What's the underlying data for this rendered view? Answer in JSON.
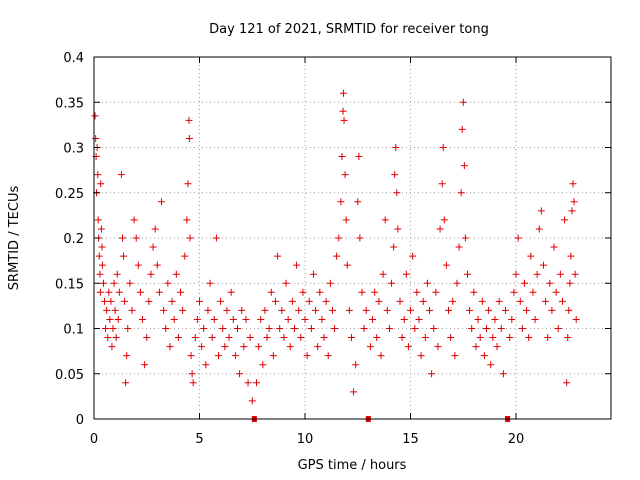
{
  "chart_data": {
    "type": "scatter",
    "title": "Day 121 of 2021, SRMTID for receiver tong",
    "xlabel": "GPS time / hours",
    "ylabel": "SRMTID / TECUs",
    "xlim": [
      0,
      24.5
    ],
    "ylim": [
      0,
      0.4
    ],
    "xticks": [
      0,
      5,
      10,
      15,
      20
    ],
    "xtick_labels": [
      "0",
      "5",
      "10",
      "15",
      "20"
    ],
    "yticks": [
      0,
      0.05,
      0.1,
      0.15,
      0.2,
      0.25,
      0.3,
      0.35,
      0.4
    ],
    "ytick_labels": [
      "0",
      "0.05",
      "0.1",
      "0.15",
      "0.2",
      "0.25",
      "0.3",
      "0.35",
      "0.4"
    ],
    "grid": true,
    "marker": "plus",
    "color": "#e00000",
    "data_gap_markers_x": [
      7.6,
      13.0,
      19.6
    ],
    "series": [
      {
        "name": "SRMTID",
        "points": [
          [
            0.05,
            0.335
          ],
          [
            0.08,
            0.31
          ],
          [
            0.1,
            0.29
          ],
          [
            0.12,
            0.25
          ],
          [
            0.15,
            0.3
          ],
          [
            0.18,
            0.27
          ],
          [
            0.2,
            0.22
          ],
          [
            0.22,
            0.2
          ],
          [
            0.25,
            0.18
          ],
          [
            0.28,
            0.16
          ],
          [
            0.3,
            0.14
          ],
          [
            0.32,
            0.26
          ],
          [
            0.35,
            0.21
          ],
          [
            0.38,
            0.19
          ],
          [
            0.4,
            0.17
          ],
          [
            0.45,
            0.15
          ],
          [
            0.5,
            0.13
          ],
          [
            0.55,
            0.1
          ],
          [
            0.6,
            0.12
          ],
          [
            0.65,
            0.09
          ],
          [
            0.7,
            0.14
          ],
          [
            0.75,
            0.11
          ],
          [
            0.8,
            0.13
          ],
          [
            0.85,
            0.08
          ],
          [
            0.9,
            0.1
          ],
          [
            0.95,
            0.15
          ],
          [
            1.0,
            0.12
          ],
          [
            1.05,
            0.09
          ],
          [
            1.1,
            0.16
          ],
          [
            1.15,
            0.11
          ],
          [
            1.2,
            0.14
          ],
          [
            1.3,
            0.27
          ],
          [
            1.35,
            0.2
          ],
          [
            1.4,
            0.18
          ],
          [
            1.45,
            0.13
          ],
          [
            1.5,
            0.04
          ],
          [
            1.55,
            0.07
          ],
          [
            1.6,
            0.1
          ],
          [
            1.7,
            0.15
          ],
          [
            1.8,
            0.12
          ],
          [
            1.9,
            0.22
          ],
          [
            2.0,
            0.2
          ],
          [
            2.1,
            0.17
          ],
          [
            2.2,
            0.14
          ],
          [
            2.3,
            0.11
          ],
          [
            2.4,
            0.06
          ],
          [
            2.5,
            0.09
          ],
          [
            2.6,
            0.13
          ],
          [
            2.7,
            0.16
          ],
          [
            2.8,
            0.19
          ],
          [
            2.9,
            0.21
          ],
          [
            3.0,
            0.17
          ],
          [
            3.1,
            0.14
          ],
          [
            3.2,
            0.24
          ],
          [
            3.3,
            0.12
          ],
          [
            3.4,
            0.1
          ],
          [
            3.5,
            0.15
          ],
          [
            3.6,
            0.08
          ],
          [
            3.7,
            0.13
          ],
          [
            3.8,
            0.11
          ],
          [
            3.9,
            0.16
          ],
          [
            4.0,
            0.09
          ],
          [
            4.1,
            0.14
          ],
          [
            4.2,
            0.12
          ],
          [
            4.3,
            0.18
          ],
          [
            4.4,
            0.22
          ],
          [
            4.45,
            0.26
          ],
          [
            4.5,
            0.33
          ],
          [
            4.52,
            0.31
          ],
          [
            4.55,
            0.2
          ],
          [
            4.6,
            0.07
          ],
          [
            4.65,
            0.05
          ],
          [
            4.7,
            0.04
          ],
          [
            4.8,
            0.09
          ],
          [
            4.9,
            0.11
          ],
          [
            5.0,
            0.13
          ],
          [
            5.1,
            0.08
          ],
          [
            5.2,
            0.1
          ],
          [
            5.3,
            0.06
          ],
          [
            5.4,
            0.12
          ],
          [
            5.5,
            0.15
          ],
          [
            5.6,
            0.09
          ],
          [
            5.7,
            0.11
          ],
          [
            5.8,
            0.2
          ],
          [
            5.9,
            0.07
          ],
          [
            6.0,
            0.13
          ],
          [
            6.1,
            0.1
          ],
          [
            6.2,
            0.08
          ],
          [
            6.3,
            0.12
          ],
          [
            6.4,
            0.09
          ],
          [
            6.5,
            0.14
          ],
          [
            6.6,
            0.11
          ],
          [
            6.7,
            0.07
          ],
          [
            6.8,
            0.1
          ],
          [
            6.9,
            0.05
          ],
          [
            7.0,
            0.12
          ],
          [
            7.1,
            0.08
          ],
          [
            7.2,
            0.11
          ],
          [
            7.3,
            0.04
          ],
          [
            7.4,
            0.09
          ],
          [
            7.5,
            0.02
          ],
          [
            7.7,
            0.04
          ],
          [
            7.8,
            0.08
          ],
          [
            7.9,
            0.11
          ],
          [
            8.0,
            0.06
          ],
          [
            8.1,
            0.12
          ],
          [
            8.2,
            0.09
          ],
          [
            8.3,
            0.1
          ],
          [
            8.4,
            0.14
          ],
          [
            8.5,
            0.07
          ],
          [
            8.6,
            0.13
          ],
          [
            8.7,
            0.18
          ],
          [
            8.8,
            0.1
          ],
          [
            8.9,
            0.12
          ],
          [
            9.0,
            0.09
          ],
          [
            9.1,
            0.15
          ],
          [
            9.2,
            0.11
          ],
          [
            9.3,
            0.08
          ],
          [
            9.4,
            0.13
          ],
          [
            9.5,
            0.1
          ],
          [
            9.6,
            0.17
          ],
          [
            9.7,
            0.12
          ],
          [
            9.8,
            0.09
          ],
          [
            9.9,
            0.14
          ],
          [
            10.0,
            0.11
          ],
          [
            10.1,
            0.07
          ],
          [
            10.2,
            0.13
          ],
          [
            10.3,
            0.1
          ],
          [
            10.4,
            0.16
          ],
          [
            10.5,
            0.12
          ],
          [
            10.6,
            0.08
          ],
          [
            10.7,
            0.14
          ],
          [
            10.8,
            0.11
          ],
          [
            10.9,
            0.09
          ],
          [
            11.0,
            0.13
          ],
          [
            11.1,
            0.07
          ],
          [
            11.2,
            0.15
          ],
          [
            11.3,
            0.12
          ],
          [
            11.4,
            0.1
          ],
          [
            11.5,
            0.18
          ],
          [
            11.6,
            0.2
          ],
          [
            11.7,
            0.24
          ],
          [
            11.75,
            0.29
          ],
          [
            11.8,
            0.34
          ],
          [
            11.82,
            0.36
          ],
          [
            11.85,
            0.33
          ],
          [
            11.9,
            0.27
          ],
          [
            11.95,
            0.22
          ],
          [
            12.0,
            0.17
          ],
          [
            12.1,
            0.12
          ],
          [
            12.2,
            0.09
          ],
          [
            12.3,
            0.03
          ],
          [
            12.4,
            0.06
          ],
          [
            12.5,
            0.24
          ],
          [
            12.55,
            0.29
          ],
          [
            12.6,
            0.2
          ],
          [
            12.7,
            0.14
          ],
          [
            12.8,
            0.1
          ],
          [
            12.9,
            0.12
          ],
          [
            13.1,
            0.08
          ],
          [
            13.2,
            0.11
          ],
          [
            13.3,
            0.14
          ],
          [
            13.4,
            0.09
          ],
          [
            13.5,
            0.13
          ],
          [
            13.6,
            0.07
          ],
          [
            13.7,
            0.16
          ],
          [
            13.8,
            0.22
          ],
          [
            13.9,
            0.12
          ],
          [
            14.0,
            0.1
          ],
          [
            14.1,
            0.15
          ],
          [
            14.2,
            0.19
          ],
          [
            14.25,
            0.27
          ],
          [
            14.3,
            0.3
          ],
          [
            14.35,
            0.25
          ],
          [
            14.4,
            0.21
          ],
          [
            14.5,
            0.13
          ],
          [
            14.6,
            0.09
          ],
          [
            14.7,
            0.11
          ],
          [
            14.8,
            0.16
          ],
          [
            14.9,
            0.08
          ],
          [
            15.0,
            0.12
          ],
          [
            15.1,
            0.18
          ],
          [
            15.2,
            0.1
          ],
          [
            15.3,
            0.14
          ],
          [
            15.4,
            0.11
          ],
          [
            15.5,
            0.07
          ],
          [
            15.6,
            0.13
          ],
          [
            15.7,
            0.09
          ],
          [
            15.8,
            0.15
          ],
          [
            15.9,
            0.12
          ],
          [
            16.0,
            0.05
          ],
          [
            16.1,
            0.1
          ],
          [
            16.2,
            0.14
          ],
          [
            16.3,
            0.08
          ],
          [
            16.4,
            0.21
          ],
          [
            16.5,
            0.26
          ],
          [
            16.55,
            0.3
          ],
          [
            16.6,
            0.22
          ],
          [
            16.7,
            0.17
          ],
          [
            16.8,
            0.12
          ],
          [
            16.9,
            0.09
          ],
          [
            17.0,
            0.13
          ],
          [
            17.1,
            0.07
          ],
          [
            17.2,
            0.15
          ],
          [
            17.3,
            0.19
          ],
          [
            17.4,
            0.25
          ],
          [
            17.45,
            0.32
          ],
          [
            17.5,
            0.35
          ],
          [
            17.55,
            0.28
          ],
          [
            17.6,
            0.2
          ],
          [
            17.7,
            0.16
          ],
          [
            17.8,
            0.12
          ],
          [
            17.9,
            0.1
          ],
          [
            18.0,
            0.14
          ],
          [
            18.1,
            0.08
          ],
          [
            18.2,
            0.11
          ],
          [
            18.3,
            0.09
          ],
          [
            18.4,
            0.13
          ],
          [
            18.5,
            0.07
          ],
          [
            18.6,
            0.1
          ],
          [
            18.7,
            0.12
          ],
          [
            18.8,
            0.06
          ],
          [
            18.9,
            0.09
          ],
          [
            19.0,
            0.11
          ],
          [
            19.1,
            0.08
          ],
          [
            19.2,
            0.13
          ],
          [
            19.3,
            0.1
          ],
          [
            19.4,
            0.05
          ],
          [
            19.5,
            0.12
          ],
          [
            19.7,
            0.09
          ],
          [
            19.8,
            0.11
          ],
          [
            19.9,
            0.14
          ],
          [
            20.0,
            0.16
          ],
          [
            20.1,
            0.2
          ],
          [
            20.2,
            0.13
          ],
          [
            20.3,
            0.1
          ],
          [
            20.4,
            0.15
          ],
          [
            20.5,
            0.12
          ],
          [
            20.6,
            0.09
          ],
          [
            20.7,
            0.18
          ],
          [
            20.8,
            0.14
          ],
          [
            20.9,
            0.11
          ],
          [
            21.0,
            0.16
          ],
          [
            21.1,
            0.21
          ],
          [
            21.2,
            0.23
          ],
          [
            21.3,
            0.17
          ],
          [
            21.4,
            0.13
          ],
          [
            21.5,
            0.09
          ],
          [
            21.6,
            0.15
          ],
          [
            21.7,
            0.12
          ],
          [
            21.8,
            0.19
          ],
          [
            21.9,
            0.14
          ],
          [
            22.0,
            0.1
          ],
          [
            22.1,
            0.16
          ],
          [
            22.2,
            0.13
          ],
          [
            22.3,
            0.22
          ],
          [
            22.4,
            0.04
          ],
          [
            22.45,
            0.09
          ],
          [
            22.5,
            0.12
          ],
          [
            22.55,
            0.15
          ],
          [
            22.6,
            0.18
          ],
          [
            22.65,
            0.23
          ],
          [
            22.7,
            0.26
          ],
          [
            22.75,
            0.24
          ],
          [
            22.8,
            0.16
          ],
          [
            22.85,
            0.11
          ]
        ]
      }
    ]
  }
}
